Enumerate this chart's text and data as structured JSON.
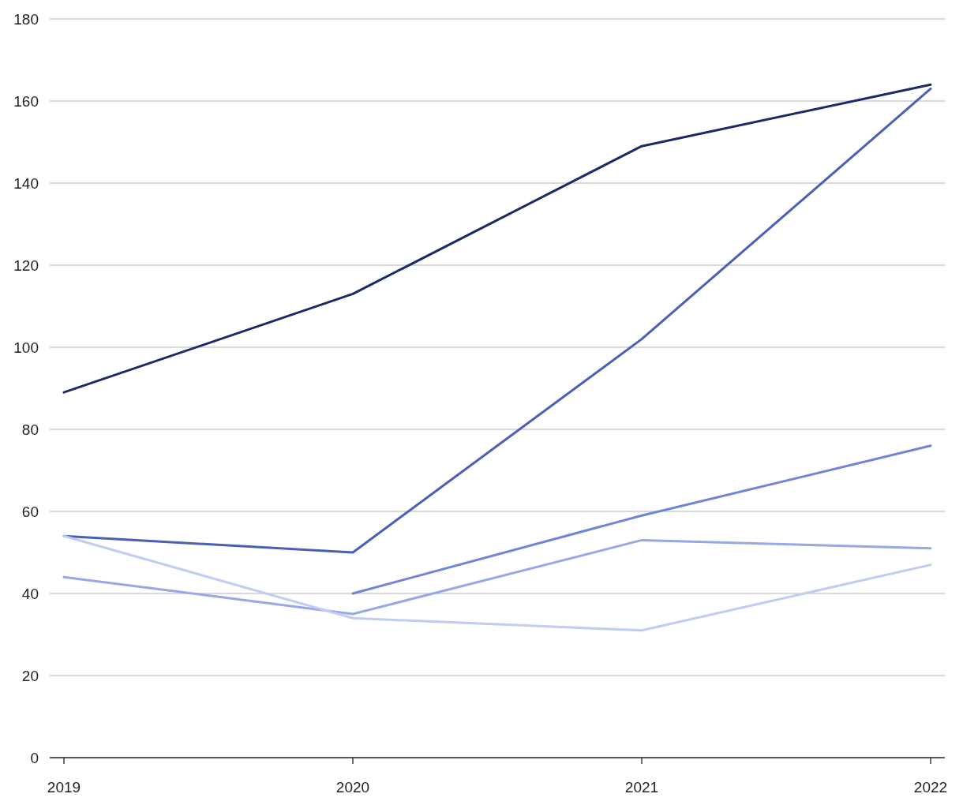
{
  "chart_data": {
    "type": "line",
    "categories": [
      "2019",
      "2020",
      "2021",
      "2022"
    ],
    "series": [
      {
        "color": "#1b2a66",
        "values": [
          89,
          113,
          149,
          164
        ]
      },
      {
        "color": "#4a5fb5",
        "values": [
          54,
          50,
          102,
          163
        ]
      },
      {
        "color": "#6f86d6",
        "values": [
          null,
          40,
          59,
          76
        ]
      },
      {
        "color": "#97a8e6",
        "values": [
          44,
          35,
          53,
          51
        ]
      },
      {
        "color": "#c0ccf2",
        "values": [
          54,
          34,
          31,
          47
        ]
      }
    ],
    "ylim": [
      0,
      180
    ],
    "yticks": [
      0,
      20,
      40,
      60,
      80,
      100,
      120,
      140,
      160,
      180
    ],
    "grid": "y",
    "marker": "none",
    "line_style": "solid"
  }
}
